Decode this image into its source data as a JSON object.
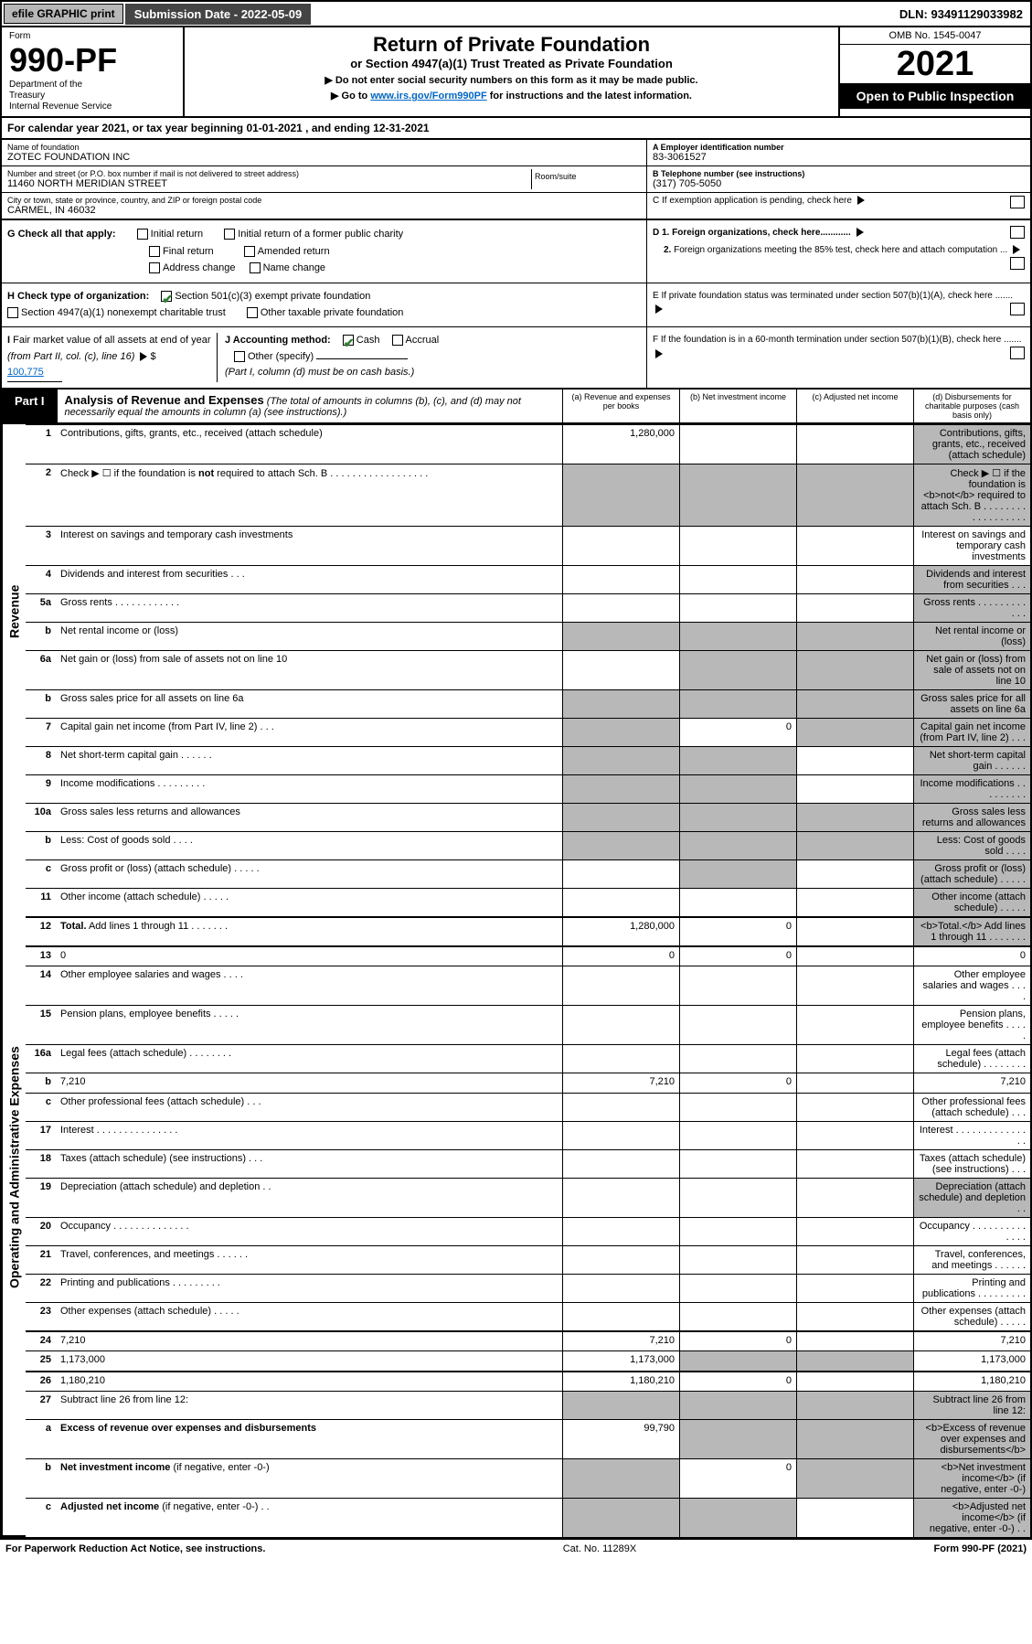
{
  "topbar": {
    "efile": "efile GRAPHIC print",
    "submission_label": "Submission Date - 2022-05-09",
    "dln": "DLN: 93491129033982"
  },
  "header": {
    "form_label": "Form",
    "form_number": "990-PF",
    "dept": "Department of the Treasury\nInternal Revenue Service",
    "title": "Return of Private Foundation",
    "subtitle": "or Section 4947(a)(1) Trust Treated as Private Foundation",
    "note1": "▶ Do not enter social security numbers on this form as it may be made public.",
    "note2_pre": "▶ Go to ",
    "note2_link": "www.irs.gov/Form990PF",
    "note2_post": " for instructions and the latest information.",
    "omb": "OMB No. 1545-0047",
    "year": "2021",
    "open": "Open to Public Inspection"
  },
  "cal": "For calendar year 2021, or tax year beginning 01-01-2021                          , and ending 12-31-2021",
  "foundation": {
    "name_lbl": "Name of foundation",
    "name": "ZOTEC FOUNDATION INC",
    "addr_lbl": "Number and street (or P.O. box number if mail is not delivered to street address)",
    "addr": "11460 NORTH MERIDIAN STREET",
    "room_lbl": "Room/suite",
    "city_lbl": "City or town, state or province, country, and ZIP or foreign postal code",
    "city": "CARMEL, IN  46032",
    "ein_lbl": "A Employer identification number",
    "ein": "83-3061527",
    "tel_lbl": "B Telephone number (see instructions)",
    "tel": "(317) 705-5050",
    "c_lbl": "C If exemption application is pending, check here"
  },
  "g": {
    "label": "G Check all that apply:",
    "opts": [
      "Initial return",
      "Initial return of a former public charity",
      "Final return",
      "Amended return",
      "Address change",
      "Name change"
    ]
  },
  "h": {
    "label": "H Check type of organization:",
    "opt1": "Section 501(c)(3) exempt private foundation",
    "opt2": "Section 4947(a)(1) nonexempt charitable trust",
    "opt3": "Other taxable private foundation"
  },
  "i": {
    "label": "I Fair market value of all assets at end of year (from Part II, col. (c), line 16)",
    "value": "100,775"
  },
  "j": {
    "label": "J Accounting method:",
    "cash": "Cash",
    "accrual": "Accrual",
    "other": "Other (specify)",
    "note": "(Part I, column (d) must be on cash basis.)"
  },
  "d": {
    "d1": "D 1. Foreign organizations, check here............",
    "d2": "2. Foreign organizations meeting the 85% test, check here and attach computation ..."
  },
  "e": "E  If private foundation status was terminated under section 507(b)(1)(A), check here .......",
  "f": "F  If the foundation is in a 60-month termination under section 507(b)(1)(B), check here .......",
  "part1": {
    "tab": "Part I",
    "title": "Analysis of Revenue and Expenses",
    "title_note": "(The total of amounts in columns (b), (c), and (d) may not necessarily equal the amounts in column (a) (see instructions).)",
    "cols": {
      "a": "(a)  Revenue and expenses per books",
      "b": "(b)  Net investment income",
      "c": "(c)  Adjusted net income",
      "d": "(d)  Disbursements for charitable purposes (cash basis only)"
    }
  },
  "side_labels": {
    "revenue": "Revenue",
    "expenses": "Operating and Administrative Expenses"
  },
  "rows": [
    {
      "n": "1",
      "d": "Contributions, gifts, grants, etc., received (attach schedule)",
      "a": "1,280,000",
      "grey_d": true
    },
    {
      "n": "2",
      "d": "Check ▶ ☐ if the foundation is <b>not</b> required to attach Sch. B  . . . . . . . . . . . . . . . . . .",
      "grey_d": true,
      "noborder": true,
      "grey_all": true
    },
    {
      "n": "3",
      "d": "Interest on savings and temporary cash investments"
    },
    {
      "n": "4",
      "d": "Dividends and interest from securities  . . .",
      "grey_d": true
    },
    {
      "n": "5a",
      "d": "Gross rents  . . . . . . . . . . . .",
      "grey_d": true
    },
    {
      "n": "b",
      "d": "Net rental income or (loss)",
      "grey_all": true,
      "short": true
    },
    {
      "n": "6a",
      "d": "Net gain or (loss) from sale of assets not on line 10",
      "grey_bcd": true
    },
    {
      "n": "b",
      "d": "Gross sales price for all assets on line 6a",
      "grey_all": true,
      "short": true
    },
    {
      "n": "7",
      "d": "Capital gain net income (from Part IV, line 2)  . . .",
      "b": "0",
      "grey_a": true,
      "grey_cd": true
    },
    {
      "n": "8",
      "d": "Net short-term capital gain  . . . . . .",
      "grey_ab": true,
      "grey_d": true
    },
    {
      "n": "9",
      "d": "Income modifications . . . . . . . . .",
      "grey_ab": true,
      "grey_d": true
    },
    {
      "n": "10a",
      "d": "Gross sales less returns and allowances",
      "grey_all": true,
      "short": true
    },
    {
      "n": "b",
      "d": "Less: Cost of goods sold  . . . .",
      "grey_all": true,
      "short": true
    },
    {
      "n": "c",
      "d": "Gross profit or (loss) (attach schedule)  . . . . .",
      "grey_b": true,
      "grey_d": true
    },
    {
      "n": "11",
      "d": "Other income (attach schedule)  . . . . .",
      "grey_d": true
    },
    {
      "n": "12",
      "d": "<b>Total.</b> Add lines 1 through 11  . . . . . . .",
      "a": "1,280,000",
      "b": "0",
      "grey_d": true,
      "thick": true
    },
    {
      "n": "13",
      "d": "0",
      "a": "0",
      "b": "0"
    },
    {
      "n": "14",
      "d": "Other employee salaries and wages  . . . ."
    },
    {
      "n": "15",
      "d": "Pension plans, employee benefits  . . . . ."
    },
    {
      "n": "16a",
      "d": "Legal fees (attach schedule) . . . . . . . ."
    },
    {
      "n": "b",
      "d": "7,210",
      "a": "7,210",
      "b": "0"
    },
    {
      "n": "c",
      "d": "Other professional fees (attach schedule)  . . ."
    },
    {
      "n": "17",
      "d": "Interest . . . . . . . . . . . . . . ."
    },
    {
      "n": "18",
      "d": "Taxes (attach schedule) (see instructions)  . . ."
    },
    {
      "n": "19",
      "d": "Depreciation (attach schedule) and depletion  . .",
      "grey_d": true
    },
    {
      "n": "20",
      "d": "Occupancy . . . . . . . . . . . . . ."
    },
    {
      "n": "21",
      "d": "Travel, conferences, and meetings . . . . . ."
    },
    {
      "n": "22",
      "d": "Printing and publications . . . . . . . . ."
    },
    {
      "n": "23",
      "d": "Other expenses (attach schedule)  . . . . ."
    },
    {
      "n": "24",
      "d": "7,210",
      "a": "7,210",
      "b": "0",
      "thick": true
    },
    {
      "n": "25",
      "d": "1,173,000",
      "a": "1,173,000",
      "grey_bc": true
    },
    {
      "n": "26",
      "d": "1,180,210",
      "a": "1,180,210",
      "b": "0",
      "thick": true
    },
    {
      "n": "27",
      "d": "Subtract line 26 from line 12:",
      "grey_all": true
    },
    {
      "n": "a",
      "d": "<b>Excess of revenue over expenses and disbursements</b>",
      "a": "99,790",
      "grey_bcd": true
    },
    {
      "n": "b",
      "d": "<b>Net investment income</b> (if negative, enter -0-)",
      "grey_a": true,
      "b": "0",
      "grey_cd": true
    },
    {
      "n": "c",
      "d": "<b>Adjusted net income</b> (if negative, enter -0-)  . .",
      "grey_ab": true,
      "grey_d": true
    }
  ],
  "footer": {
    "left": "For Paperwork Reduction Act Notice, see instructions.",
    "mid": "Cat. No. 11289X",
    "right": "Form 990-PF (2021)"
  },
  "colors": {
    "grey": "#b8b8b8",
    "black": "#000000",
    "link": "#0066cc",
    "check": "#2e7d32"
  }
}
